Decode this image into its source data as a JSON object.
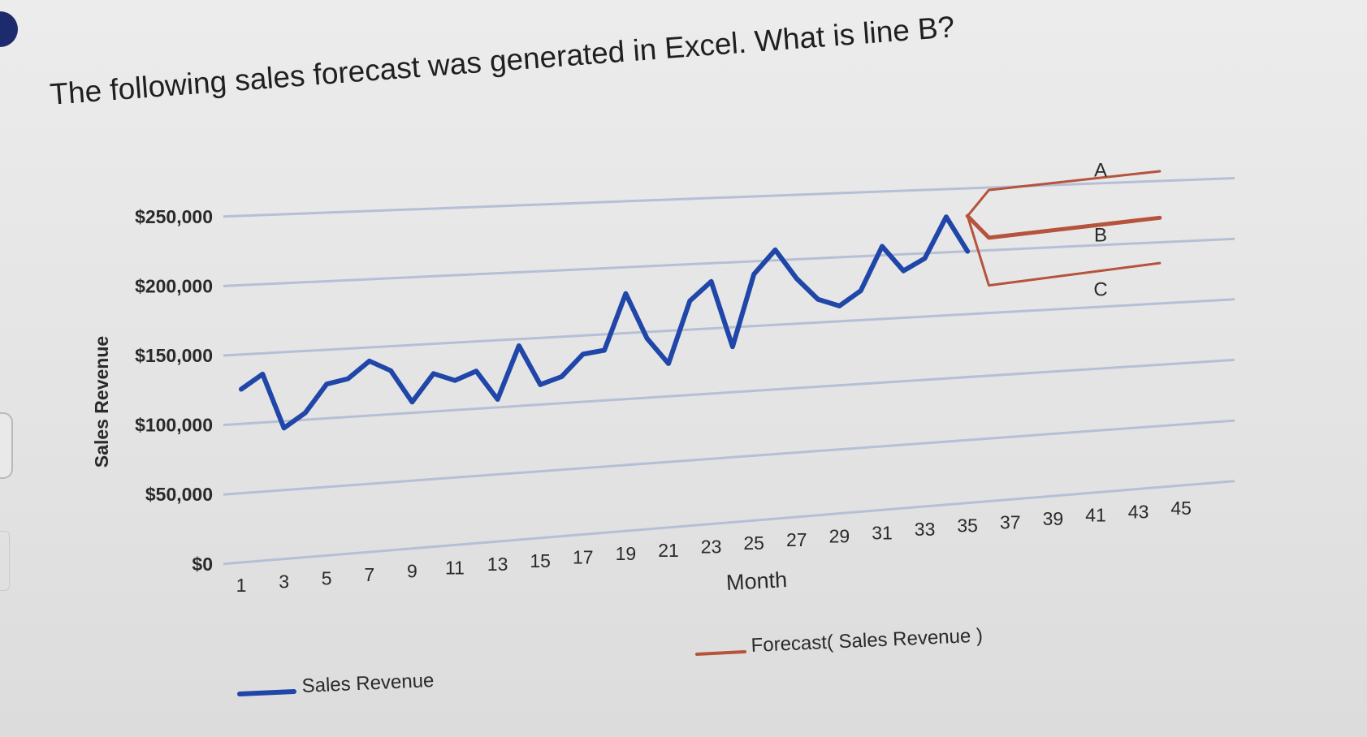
{
  "question": "The following sales forecast was generated in Excel. What is line B?",
  "colors": {
    "actual": "#1f46a8",
    "forecast": "#b5533c",
    "grid": "#b6bfd6",
    "text": "#2a2a2a"
  },
  "chart_data": {
    "type": "line",
    "ylabel": "Sales Revenue",
    "xlabel": "Month",
    "ylim": [
      0,
      250000
    ],
    "y_ticks": [
      0,
      50000,
      100000,
      150000,
      200000,
      250000
    ],
    "y_tick_labels": [
      "$0",
      "$50,000",
      "$100,000",
      "$150,000",
      "$200,000",
      "$250,000"
    ],
    "x_range": [
      1,
      45
    ],
    "x_ticks": [
      1,
      3,
      5,
      7,
      9,
      11,
      13,
      15,
      17,
      19,
      21,
      23,
      25,
      27,
      29,
      31,
      33,
      35,
      37,
      39,
      41,
      43,
      45
    ],
    "grid": true,
    "legend_position": "bottom",
    "series": [
      {
        "name": "Sales Revenue",
        "color": "#1f46a8",
        "x": [
          1,
          2,
          3,
          4,
          5,
          6,
          7,
          8,
          9,
          10,
          11,
          12,
          13,
          14,
          15,
          16,
          17,
          18,
          19,
          20,
          21,
          22,
          23,
          24,
          25,
          26,
          27,
          28,
          29,
          30,
          31,
          32,
          33,
          34,
          35
        ],
        "y": [
          125000,
          135000,
          95000,
          105000,
          125000,
          128000,
          140000,
          132000,
          108000,
          128000,
          122000,
          128000,
          106000,
          145000,
          115000,
          120000,
          136000,
          138000,
          180000,
          145000,
          125000,
          172000,
          186000,
          135000,
          190000,
          208000,
          185000,
          168000,
          162000,
          173000,
          207000,
          187000,
          196000,
          228000,
          200000
        ]
      },
      {
        "name": "Forecast( Sales Revenue )",
        "color": "#b5533c",
        "lines": [
          {
            "label": "A",
            "x": [
              35,
              36,
              44
            ],
            "y": [
              228000,
              248000,
              258000
            ]
          },
          {
            "label": "B",
            "x": [
              35,
              36,
              44
            ],
            "y": [
              228000,
              210000,
              220000
            ]
          },
          {
            "label": "C",
            "x": [
              35,
              36,
              44
            ],
            "y": [
              228000,
              172000,
              183000
            ]
          }
        ]
      }
    ]
  }
}
